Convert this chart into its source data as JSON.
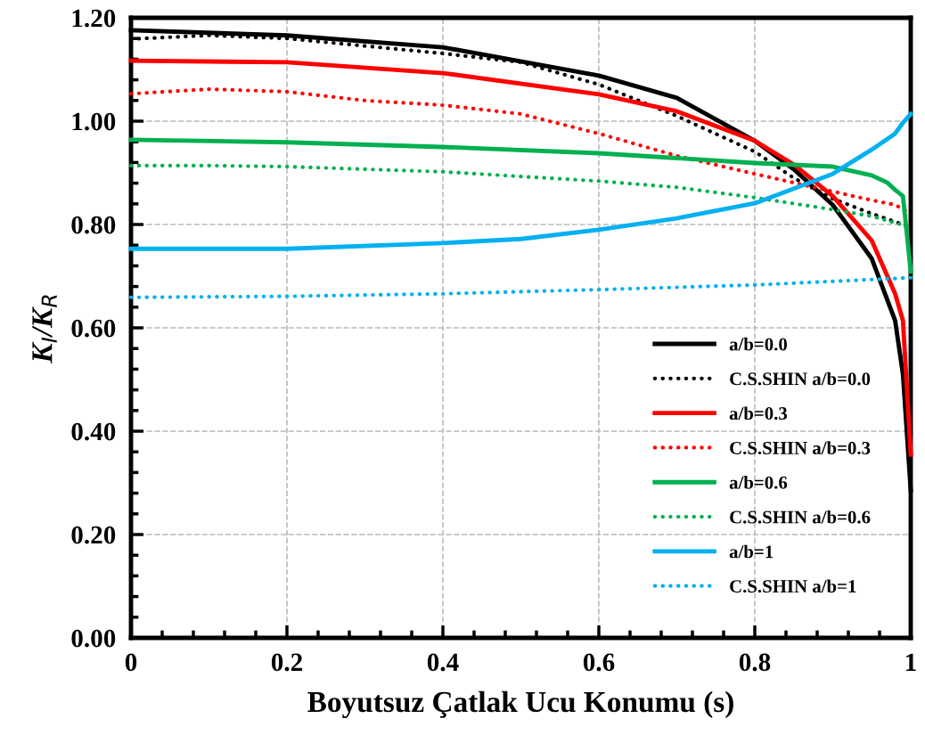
{
  "chart_data": {
    "type": "line",
    "xlabel": "Boyutsuz Çatlak Ucu Konumu (s)",
    "ylabel": "K$_{I}$/K$_{R}$",
    "xlim": [
      0,
      1
    ],
    "xticks": [
      0,
      0.2,
      0.4,
      0.6,
      0.8,
      1
    ],
    "ylim": [
      0,
      1.2
    ],
    "yticks": [
      {
        "value": 0,
        "label": "0.00"
      },
      {
        "value": 0.2,
        "label": "0.20"
      },
      {
        "value": 0.4,
        "label": "0.40"
      },
      {
        "value": 0.6,
        "label": "0.60"
      },
      {
        "value": 0.8,
        "label": "0.80"
      },
      {
        "value": 1.0,
        "label": "1.00"
      },
      {
        "value": 1.2,
        "label": "1.20"
      }
    ],
    "grid": true,
    "legend": "bottom right",
    "marker": "none",
    "series": [
      {
        "name": "a/b=0.0",
        "color": "#000000",
        "line_style": "solid",
        "x": [
          0,
          0.2,
          0.4,
          0.6,
          0.7,
          0.8,
          0.85,
          0.9,
          0.95,
          0.98,
          0.99,
          1.0
        ],
        "values": [
          1.176,
          1.166,
          1.143,
          1.088,
          1.045,
          0.962,
          0.907,
          0.838,
          0.734,
          0.614,
          0.51,
          0.286
        ]
      },
      {
        "name": "C.S.SHIN a/b=0.0",
        "color": "#000000",
        "line_style": "dotted",
        "x": [
          0,
          0.1,
          0.2,
          0.4,
          0.5,
          0.6,
          0.7,
          0.8,
          0.85,
          0.9,
          0.95,
          1.0
        ],
        "values": [
          1.159,
          1.166,
          1.16,
          1.131,
          1.114,
          1.071,
          1.01,
          0.941,
          0.89,
          0.85,
          0.821,
          0.795
        ]
      },
      {
        "name": "a/b=0.3",
        "color": "#ff0000",
        "line_style": "solid",
        "x": [
          0,
          0.2,
          0.4,
          0.6,
          0.7,
          0.8,
          0.85,
          0.9,
          0.95,
          0.98,
          0.99,
          1.0
        ],
        "values": [
          1.117,
          1.114,
          1.093,
          1.052,
          1.019,
          0.962,
          0.916,
          0.855,
          0.769,
          0.666,
          0.614,
          0.355
        ]
      },
      {
        "name": "C.S.SHIN a/b=0.3",
        "color": "#ff0000",
        "line_style": "dotted",
        "x": [
          0,
          0.1,
          0.2,
          0.3,
          0.4,
          0.5,
          0.6,
          0.7,
          0.8,
          0.9,
          0.95,
          0.98,
          1.0
        ],
        "values": [
          1.053,
          1.062,
          1.057,
          1.04,
          1.031,
          1.014,
          0.976,
          0.933,
          0.898,
          0.864,
          0.847,
          0.838,
          0.821
        ]
      },
      {
        "name": "a/b=0.6",
        "color": "#00b050",
        "line_style": "solid",
        "x": [
          0,
          0.2,
          0.4,
          0.6,
          0.8,
          0.9,
          0.95,
          0.97,
          0.98,
          0.99,
          1.0
        ],
        "values": [
          0.964,
          0.959,
          0.95,
          0.938,
          0.919,
          0.912,
          0.895,
          0.881,
          0.867,
          0.855,
          0.709
        ]
      },
      {
        "name": "C.S.SHIN a/b=0.6",
        "color": "#00b050",
        "line_style": "dotted",
        "x": [
          0,
          0.1,
          0.2,
          0.4,
          0.6,
          0.7,
          0.8,
          0.9,
          0.95,
          1.0
        ],
        "values": [
          0.914,
          0.914,
          0.912,
          0.902,
          0.884,
          0.872,
          0.852,
          0.829,
          0.816,
          0.795
        ]
      },
      {
        "name": "a/b=1",
        "color": "#00b0f0",
        "line_style": "solid",
        "x": [
          0,
          0.2,
          0.4,
          0.5,
          0.6,
          0.7,
          0.8,
          0.9,
          0.95,
          0.98,
          0.99,
          1.0
        ],
        "values": [
          0.753,
          0.753,
          0.764,
          0.772,
          0.79,
          0.812,
          0.841,
          0.898,
          0.945,
          0.976,
          0.997,
          1.014
        ]
      },
      {
        "name": "C.S.SHIN a/b=1",
        "color": "#00b0f0",
        "line_style": "dotted",
        "x": [
          0,
          0.2,
          0.4,
          0.6,
          0.8,
          1.0
        ],
        "values": [
          0.659,
          0.661,
          0.666,
          0.674,
          0.683,
          0.697
        ]
      }
    ]
  }
}
